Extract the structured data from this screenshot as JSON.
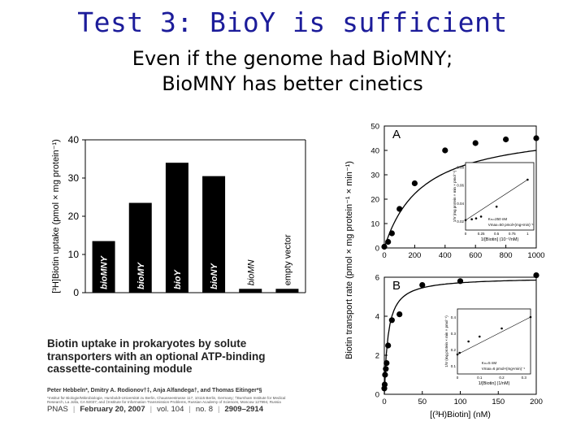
{
  "slide": {
    "title": "Test 3: BioY is sufficient",
    "subtitle_line1": "Even if the genome had BioMNY;",
    "subtitle_line2": "BioMNY has better cinetics"
  },
  "paper": {
    "title": "Biotin uptake in prokaryotes by solute transporters with an optional ATP-binding cassette-containing module",
    "authors": "Peter Hebbeln*, Dmitry A. Rodionov†‡, Anja Alfandega†, and Thomas Eitinger*§",
    "affiliation": "*Institut für Biologie/Mikrobiologie, Humboldt-Universität zu Berlin, Chausseestrasse 117, 10115 Berlin, Germany; †Burnham Institute for Medical Research, La Jolla, CA 92037; and ‡Institute for Information Transmission Problems, Russian Academy of Sciences, Moscow 127994, Russia",
    "journal": "PNAS",
    "date": "February 20, 2007",
    "volume": "vol. 104",
    "issue": "no. 8",
    "pages": "2909–2914"
  },
  "chart_data": [
    {
      "type": "bar",
      "ylabel": "[³H]Biotin uptake (pmol × mg protein⁻¹)",
      "ylim": [
        0,
        40
      ],
      "yticks": [
        0,
        10,
        20,
        30,
        40
      ],
      "categories": [
        "bioMNY",
        "bioMY",
        "bioY",
        "bioNY",
        "bioMN",
        "empty vector"
      ],
      "values": [
        13.5,
        23.5,
        34,
        30.5,
        1,
        1
      ]
    },
    {
      "type": "scatter",
      "panel": "A",
      "ylabel": "Biotin transport rate (pmol × mg protein⁻¹ × min⁻¹)",
      "xlim": [
        0,
        1000
      ],
      "ylim": [
        0,
        50
      ],
      "xticks": [
        0,
        200,
        400,
        600,
        800,
        1000
      ],
      "yticks": [
        0,
        10,
        20,
        30,
        40,
        50
      ],
      "x": [
        0,
        25,
        50,
        100,
        200,
        400,
        600,
        800,
        1000
      ],
      "y": [
        0.5,
        2.5,
        6,
        16,
        26.5,
        40,
        43,
        44.5,
        45
      ],
      "fit": {
        "vmax": 50,
        "km": 250
      },
      "inset": {
        "xlabel": "1/[Biotin] (10⁻²/nM)",
        "ylabel": "1/V (mg protein × min × pmol⁻¹)",
        "xticks": [
          "0",
          "0.25",
          "0.5",
          "0.75",
          "1"
        ],
        "yticks": [
          "0.02",
          "0.04",
          "0.06",
          "0.08"
        ],
        "annotation_km": "Kₘ=250 nM",
        "annotation_vmax": "Vmax=50 pmol×(mg×min)⁻¹",
        "x": [
          0.0,
          0.1,
          0.17,
          0.25,
          0.5,
          1.0
        ],
        "y": [
          0.021,
          0.022,
          0.023,
          0.025,
          0.036,
          0.066
        ]
      }
    },
    {
      "type": "scatter",
      "panel": "B",
      "xlabel": "[(³H)Biotin] (nM)",
      "xlim": [
        0,
        200
      ],
      "ylim": [
        0,
        6
      ],
      "xticks": [
        0,
        50,
        100,
        150,
        200
      ],
      "yticks": [
        0,
        2,
        4,
        6
      ],
      "x": [
        0,
        0.5,
        1,
        2,
        3,
        5,
        10,
        20,
        50,
        100,
        200
      ],
      "y": [
        0.3,
        0.5,
        1.0,
        1.3,
        1.6,
        2.5,
        3.8,
        4.1,
        5.6,
        5.8,
        6.1
      ],
      "fit": {
        "vmax": 6,
        "km": 5
      },
      "inset": {
        "xlabel": "1/[Biotin] (1/nM)",
        "ylabel": "1/V (mg protein × min × pmol⁻¹)",
        "xticks": [
          "0",
          "0.1",
          "0.2",
          "0.3"
        ],
        "yticks": [
          "0.1",
          "0.2",
          "0.3",
          "0.4"
        ],
        "annotation_km": "Kₘ=5 nM",
        "annotation_vmax": "Vmax=6 pmol×(mg×min)⁻¹",
        "x": [
          0.0,
          0.01,
          0.05,
          0.1,
          0.2,
          0.33
        ],
        "y": [
          0.17,
          0.18,
          0.25,
          0.28,
          0.33,
          0.4
        ]
      }
    }
  ]
}
